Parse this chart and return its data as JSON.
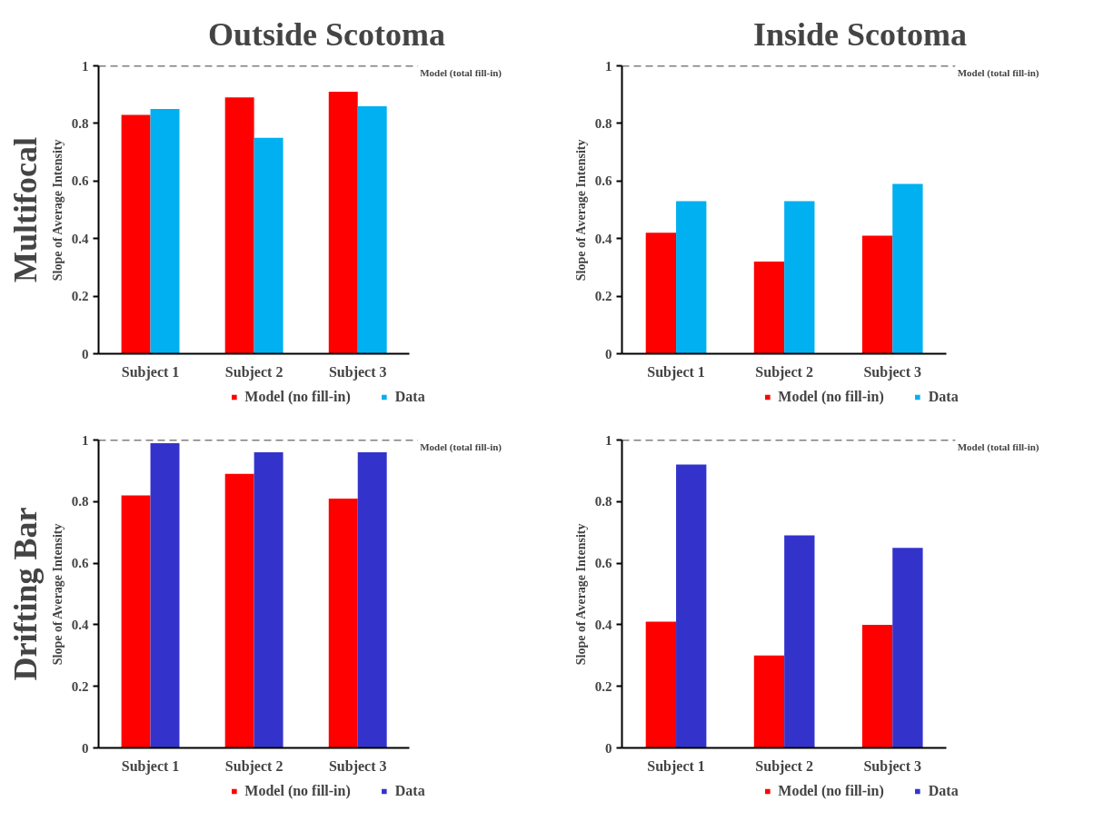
{
  "chart_data": [
    {
      "type": "bar",
      "title": "Outside Scotoma",
      "annotations": [
        "Multifocal"
      ],
      "ylabel": "Slope of Average Intensity",
      "categories": [
        "Subject 1",
        "Subject 2",
        "Subject 3"
      ],
      "series": [
        {
          "name": "Model (no fill-in)",
          "color": "#ff0000",
          "values": [
            0.83,
            0.89,
            0.91
          ]
        },
        {
          "name": "Data",
          "color": "#00b0f0",
          "values": [
            0.85,
            0.75,
            0.86
          ]
        }
      ],
      "ylim": [
        0,
        1
      ],
      "yticks": [
        0,
        0.2,
        0.4,
        0.6,
        0.8,
        1
      ],
      "grid": false,
      "legend": "bottom",
      "ref_lines": [
        {
          "axis": "y",
          "value": 1,
          "label": "Model (total fill-in)",
          "color": "#000000",
          "line_style": "dashed"
        }
      ]
    },
    {
      "type": "bar",
      "title": "Inside Scotoma",
      "ylabel": "Slope of Average Intensity",
      "categories": [
        "Subject 1",
        "Subject 2",
        "Subject 3"
      ],
      "series": [
        {
          "name": "Model (no fill-in)",
          "color": "#ff0000",
          "values": [
            0.42,
            0.32,
            0.41
          ]
        },
        {
          "name": "Data",
          "color": "#00b0f0",
          "values": [
            0.53,
            0.53,
            0.59
          ]
        }
      ],
      "ylim": [
        0,
        1
      ],
      "yticks": [
        0,
        0.2,
        0.4,
        0.6,
        0.8,
        1
      ],
      "grid": false,
      "legend": "bottom",
      "ref_lines": [
        {
          "axis": "y",
          "value": 1,
          "label": "Model (total fill-in)",
          "color": "#000000",
          "line_style": "dashed"
        }
      ]
    },
    {
      "type": "bar",
      "annotations": [
        "Drifting Bar"
      ],
      "ylabel": "Slope of Average Intensity",
      "categories": [
        "Subject 1",
        "Subject 2",
        "Subject 3"
      ],
      "series": [
        {
          "name": "Model (no fill-in)",
          "color": "#ff0000",
          "values": [
            0.82,
            0.89,
            0.81
          ]
        },
        {
          "name": "Data",
          "color": "#3333cc",
          "values": [
            0.99,
            0.96,
            0.96
          ]
        }
      ],
      "ylim": [
        0,
        1
      ],
      "yticks": [
        0,
        0.2,
        0.4,
        0.6,
        0.8,
        1
      ],
      "grid": false,
      "legend": "bottom",
      "ref_lines": [
        {
          "axis": "y",
          "value": 1,
          "label": "Model (total fill-in)",
          "color": "#000000",
          "line_style": "dashed"
        }
      ]
    },
    {
      "type": "bar",
      "ylabel": "Slope of Average Intensity",
      "categories": [
        "Subject 1",
        "Subject 2",
        "Subject 3"
      ],
      "series": [
        {
          "name": "Model (no fill-in)",
          "color": "#ff0000",
          "values": [
            0.41,
            0.3,
            0.4
          ]
        },
        {
          "name": "Data",
          "color": "#3333cc",
          "values": [
            0.92,
            0.69,
            0.65
          ]
        }
      ],
      "ylim": [
        0,
        1
      ],
      "yticks": [
        0,
        0.2,
        0.4,
        0.6,
        0.8,
        1
      ],
      "grid": false,
      "legend": "bottom",
      "ref_lines": [
        {
          "axis": "y",
          "value": 1,
          "label": "Model (total fill-in)",
          "color": "#000000",
          "line_style": "dashed"
        }
      ]
    }
  ]
}
